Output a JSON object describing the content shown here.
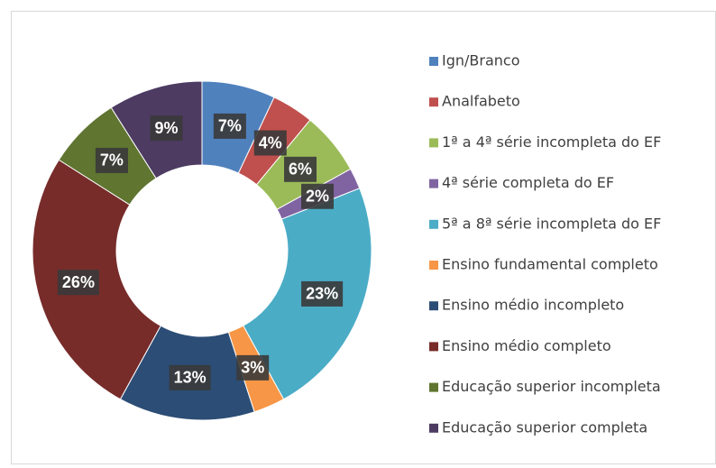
{
  "chart_data": {
    "type": "donut",
    "categories": [
      "Ign/Branco",
      "Analfabeto",
      "1ª a 4ª série incompleta do EF",
      "4ª série completa do EF",
      "5ª a 8ª série incompleta do EF",
      "Ensino fundamental completo",
      "Ensino médio incompleto",
      "Ensino médio completo",
      "Educação superior incompleta",
      "Educação superior completa"
    ],
    "values": [
      7,
      4,
      6,
      2,
      23,
      3,
      13,
      26,
      7,
      9
    ],
    "value_labels": [
      "7%",
      "4%",
      "6%",
      "2%",
      "23%",
      "3%",
      "13%",
      "26%",
      "7%",
      "9%"
    ],
    "colors": [
      "#4f81bd",
      "#c0504d",
      "#9bbb59",
      "#8064a2",
      "#4bacc6",
      "#f79646",
      "#2c4d75",
      "#772c2a",
      "#5f7530",
      "#4d3b62"
    ],
    "legend": "right"
  }
}
